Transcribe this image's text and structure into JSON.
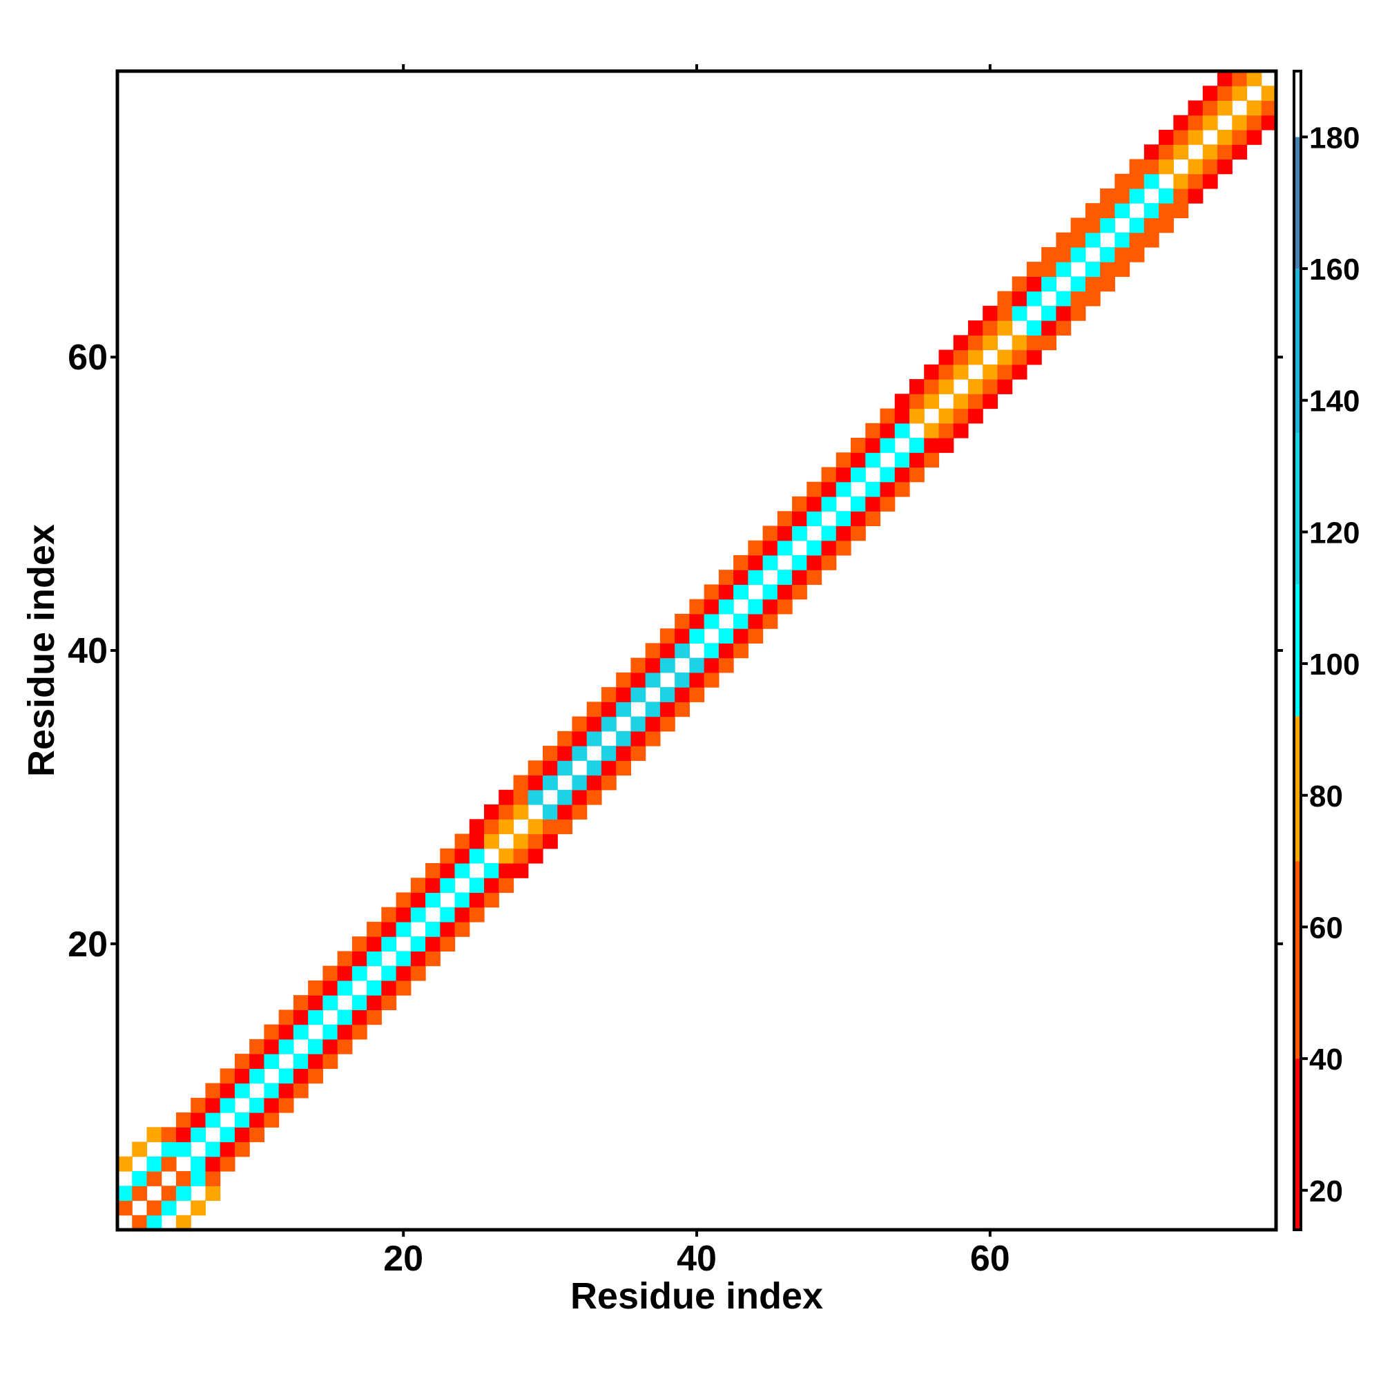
{
  "chart_data": {
    "type": "heatmap",
    "title": "",
    "xlabel": "Residue index",
    "ylabel": "Residue index",
    "xlim": [
      0.5,
      79.5
    ],
    "ylim": [
      0.5,
      79.5
    ],
    "x_ticks": [
      20,
      40,
      60
    ],
    "y_ticks": [
      20,
      40,
      60
    ],
    "diagonal_band": {
      "description_type": "symmetric contact band around diagonal",
      "min_offset": 1,
      "max_offset": 4,
      "residue_count": 79
    },
    "colorbar": {
      "range": [
        14,
        190
      ],
      "ticks": [
        20,
        40,
        60,
        80,
        100,
        120,
        140,
        160,
        180
      ],
      "segments": [
        {
          "from": 14,
          "to": 40,
          "color": "#ff0000"
        },
        {
          "from": 40,
          "to": 70,
          "color": "#ff5a00"
        },
        {
          "from": 70,
          "to": 92,
          "color": "#ffa500"
        },
        {
          "from": 92,
          "to": 112,
          "color": "#00ffff"
        },
        {
          "from": 112,
          "to": 135,
          "color": "#1ed2e6"
        },
        {
          "from": 135,
          "to": 160,
          "color": "#23b4dc"
        },
        {
          "from": 160,
          "to": 180,
          "color": "#4682b4"
        },
        {
          "from": 180,
          "to": 190,
          "color": "#ffffff"
        }
      ]
    },
    "region_types": [
      {
        "from": 1,
        "to": 5,
        "type": "coil"
      },
      {
        "from": 6,
        "to": 26,
        "type": "helix"
      },
      {
        "from": 27,
        "to": 29,
        "type": "turn"
      },
      {
        "from": 30,
        "to": 40,
        "type": "helix-b"
      },
      {
        "from": 41,
        "to": 55,
        "type": "helix"
      },
      {
        "from": 56,
        "to": 62,
        "type": "strand"
      },
      {
        "from": 63,
        "to": 64,
        "type": "helix"
      },
      {
        "from": 65,
        "to": 72,
        "type": "helix-o"
      },
      {
        "from": 73,
        "to": 79,
        "type": "strand"
      }
    ],
    "palette": {
      "coil": [
        "#ff5a00",
        "#00ffff",
        "#ffffff",
        "#ffa500"
      ],
      "helix": [
        "#00ffff",
        "#ff0000",
        "#ff5a00",
        "#ffffff"
      ],
      "helix-b": [
        "#1ed2e6",
        "#ff0000",
        "#ff5a00",
        "#ffffff"
      ],
      "helix-o": [
        "#00ffff",
        "#ff5a00",
        "#ff5a00",
        "#ffffff"
      ],
      "turn": [
        "#ffa500",
        "#ff5a00",
        "#ff0000",
        "#ffffff"
      ],
      "strand": [
        "#ffa500",
        "#ff5a00",
        "#ff0000",
        "#ffffff"
      ]
    }
  }
}
